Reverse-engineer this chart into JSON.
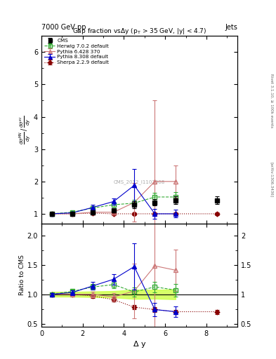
{
  "cms_x": [
    0.5,
    1.5,
    2.5,
    3.5,
    4.5,
    5.5,
    6.5,
    8.5
  ],
  "cms_y": [
    1.0,
    1.0,
    1.05,
    1.1,
    1.28,
    1.35,
    1.42,
    1.42
  ],
  "cms_yerr": [
    0.04,
    0.04,
    0.05,
    0.06,
    0.1,
    0.1,
    0.12,
    0.12
  ],
  "herwig_x": [
    0.5,
    1.5,
    2.5,
    3.5,
    4.5,
    5.5,
    6.5
  ],
  "herwig_y": [
    1.0,
    1.05,
    1.18,
    1.28,
    1.33,
    1.52,
    1.52
  ],
  "herwig_yerr": [
    0.02,
    0.03,
    0.05,
    0.07,
    0.1,
    0.12,
    0.15
  ],
  "pythia6_x": [
    0.5,
    1.5,
    2.5,
    3.5,
    4.5,
    5.5,
    6.5
  ],
  "pythia6_y": [
    1.0,
    1.0,
    1.05,
    1.05,
    1.35,
    2.0,
    2.0
  ],
  "pythia6_yerr": [
    0.02,
    0.03,
    0.05,
    0.07,
    0.6,
    2.5,
    0.5
  ],
  "pythia8_x": [
    0.5,
    1.5,
    2.5,
    3.5,
    4.5,
    5.5,
    6.5
  ],
  "pythia8_y": [
    1.0,
    1.03,
    1.2,
    1.38,
    1.88,
    1.0,
    1.0
  ],
  "pythia8_yerr": [
    0.02,
    0.04,
    0.07,
    0.1,
    0.5,
    0.15,
    0.12
  ],
  "sherpa_x": [
    0.5,
    1.5,
    2.5,
    3.5,
    4.5,
    5.5,
    6.5,
    8.5
  ],
  "sherpa_y": [
    1.0,
    1.0,
    1.02,
    1.0,
    1.0,
    1.0,
    1.0,
    1.0
  ],
  "sherpa_yerr": [
    0.02,
    0.02,
    0.04,
    0.04,
    0.05,
    0.05,
    0.05,
    0.05
  ],
  "color_cms": "#000000",
  "color_herwig": "#33aa33",
  "color_pythia6": "#cc7777",
  "color_pythia8": "#0000cc",
  "color_sherpa": "#880000"
}
